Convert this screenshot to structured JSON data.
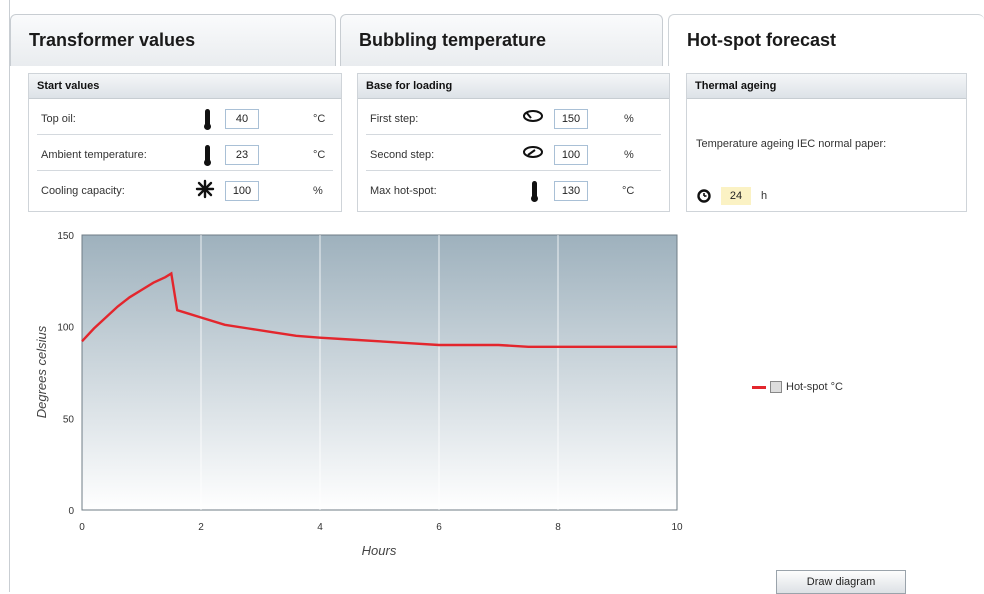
{
  "tabs": [
    {
      "label": "Transformer values"
    },
    {
      "label": "Bubbling temperature"
    },
    {
      "label": "Hot-spot forecast"
    }
  ],
  "start_values": {
    "title": "Start values",
    "top_oil": {
      "label": "Top oil:",
      "value": "40",
      "unit": "°C",
      "icon": "thermometer-icon"
    },
    "ambient": {
      "label": "Ambient temperature:",
      "value": "23",
      "unit": "°C",
      "icon": "thermometer-icon"
    },
    "cooling": {
      "label": "Cooling capacity:",
      "value": "100",
      "unit": "%",
      "icon": "fan-icon"
    }
  },
  "base_loading": {
    "title": "Base for loading",
    "first_step": {
      "label": "First step:",
      "value": "150",
      "unit": "%",
      "icon": "load-icon"
    },
    "second_step": {
      "label": "Second step:",
      "value": "100",
      "unit": "%",
      "icon": "load-icon"
    },
    "max_hotspot": {
      "label": "Max hot-spot:",
      "value": "130",
      "unit": "°C",
      "icon": "thermometer-icon"
    }
  },
  "thermal_ageing": {
    "title": "Thermal ageing",
    "description": "Temperature ageing IEC normal paper:",
    "value": "24",
    "unit": "h",
    "icon": "clock-icon"
  },
  "draw_button": "Draw diagram",
  "chart_data": {
    "type": "line",
    "xlabel": "Hours",
    "ylabel": "Degrees celsius",
    "xlim": [
      0,
      10
    ],
    "ylim": [
      0,
      150
    ],
    "xticks": [
      0,
      2,
      4,
      6,
      8,
      10
    ],
    "yticks": [
      0,
      50,
      100,
      150
    ],
    "grid": "vertical",
    "legend_position": "right",
    "series": [
      {
        "name": "Hot-spot °C",
        "color": "#e3262d",
        "x": [
          0,
          0.2,
          0.4,
          0.6,
          0.8,
          1.0,
          1.2,
          1.4,
          1.5,
          1.6,
          1.8,
          2.0,
          2.4,
          2.8,
          3.2,
          3.6,
          4.0,
          4.5,
          5.0,
          5.5,
          6.0,
          6.5,
          7.0,
          7.5,
          8.0,
          9.0,
          10.0
        ],
        "values": [
          92,
          99,
          105,
          111,
          116,
          120,
          124,
          127,
          129,
          109,
          107,
          105,
          101,
          99,
          97,
          95,
          94,
          93,
          92,
          91,
          90,
          90,
          90,
          89,
          89,
          89,
          89
        ]
      }
    ]
  }
}
